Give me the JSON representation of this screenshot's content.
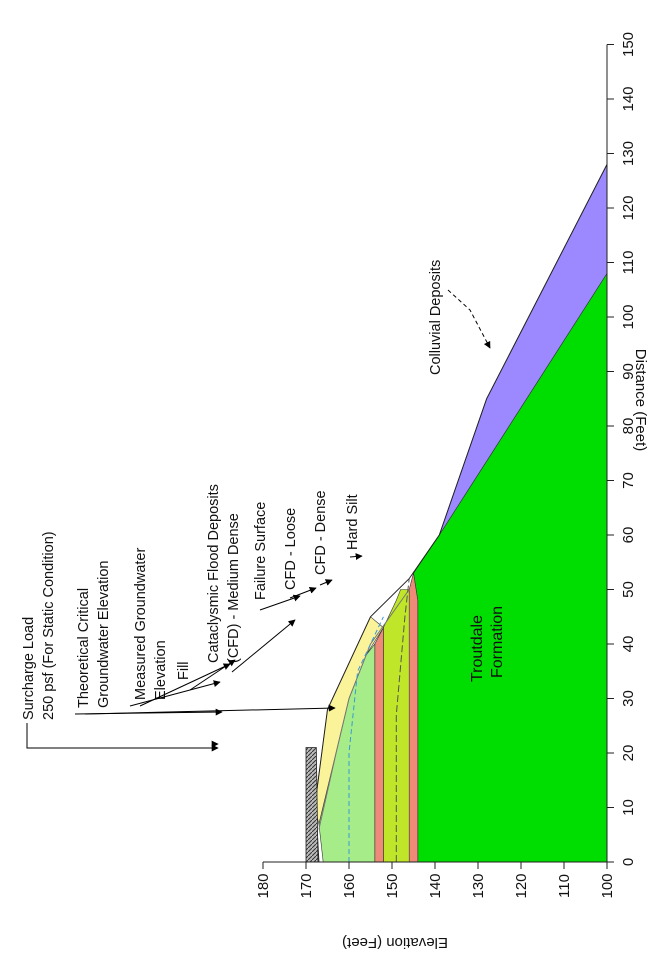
{
  "axes": {
    "xlabel": "Distance (Feet)",
    "ylabel": "Elevation (Feet)",
    "x_ticks": [
      0,
      10,
      20,
      30,
      40,
      50,
      60,
      70,
      80,
      90,
      100,
      110,
      120,
      130,
      140,
      150
    ],
    "y_ticks": [
      100,
      110,
      120,
      130,
      140,
      150,
      160,
      170,
      180
    ],
    "xlim": [
      0,
      150
    ],
    "ylim": [
      100,
      180
    ]
  },
  "colors": {
    "troutdale": "#00dd00",
    "colluvial": "#9c88ff",
    "hard_silt": "#f08a78",
    "cfd_dense": "#bfe628",
    "cfd_loose": "#f08a78",
    "cfd_medium": "#a6ec88",
    "fill": "#fbf39a",
    "surcharge": "#888888"
  },
  "labels": {
    "surcharge_1": "Surcharge Load",
    "surcharge_2": "250 psf (For Static Condition)",
    "theoretical_1": "Theoretical Critical",
    "theoretical_2": "Groundwater Elevation",
    "measured_1": "Measured Groundwater",
    "measured_2": "Elevation",
    "fill": "Fill",
    "cfd_med_1": "Cataclysmic Flood Deposits",
    "cfd_med_2": "(CFD) - Medium Dense",
    "failure": "Failure Surface",
    "cfd_loose": "CFD - Loose",
    "cfd_dense": "CFD - Dense",
    "hard_silt": "Hard Silt",
    "colluvial": "Colluvial Deposits",
    "troutdale_1": "Troutdale",
    "troutdale_2": "Formation"
  }
}
